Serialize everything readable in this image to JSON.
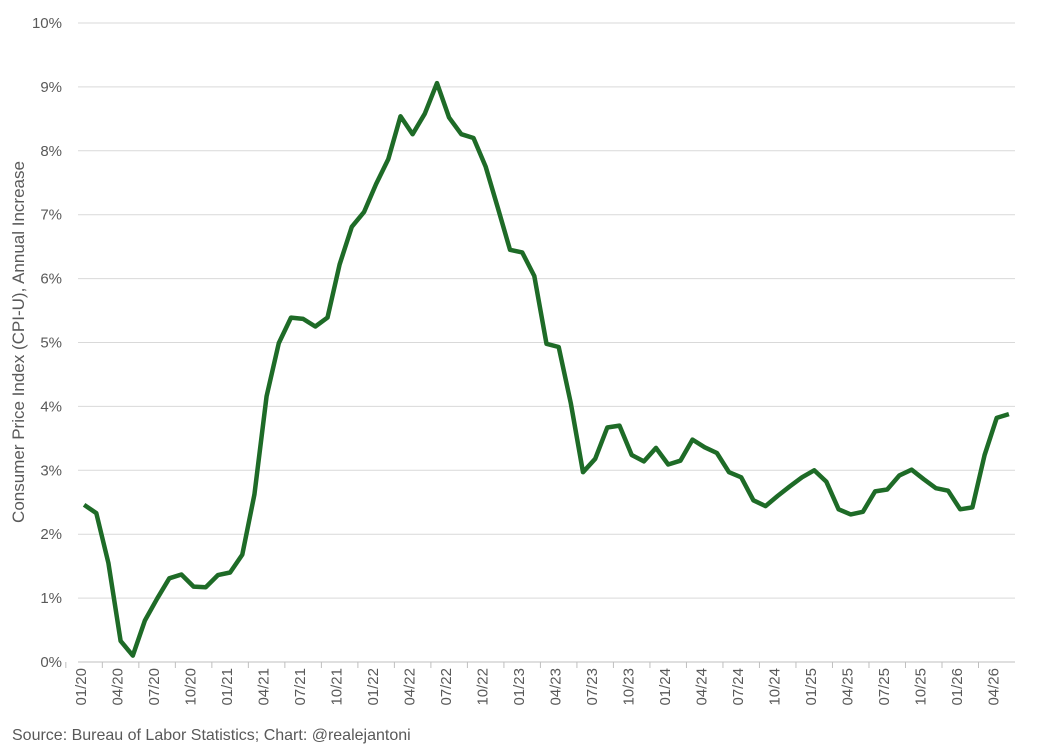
{
  "chart_data": {
    "type": "line",
    "y_label": "Consumer Price Index (CPI-U), Annual Increase",
    "source": "Source: Bureau of Labor Statistics; Chart: @realejantoni",
    "categories": [
      "01/20",
      null,
      null,
      "04/20",
      null,
      null,
      "07/20",
      null,
      null,
      "10/20",
      null,
      null,
      "01/21",
      null,
      null,
      "04/21",
      null,
      null,
      "07/21",
      null,
      null,
      "10/21",
      null,
      null,
      "01/22",
      null,
      null,
      "04/22",
      null,
      null,
      "07/22",
      null,
      null,
      "10/22",
      null,
      null,
      "01/23",
      null,
      null,
      "04/23",
      null,
      null,
      "07/23",
      null,
      null,
      "10/23",
      null,
      null,
      "01/24",
      null,
      null,
      "04/24",
      null,
      null,
      "07/24",
      null,
      null,
      "10/24",
      null,
      null,
      "01/25",
      null,
      null,
      "04/25",
      null,
      null,
      "07/25",
      null,
      null,
      "10/25",
      null,
      null,
      "01/26",
      null,
      null,
      "04/26",
      null
    ],
    "series": [
      {
        "color": "#1e6b27",
        "values": [
          2.46,
          2.33,
          1.55,
          0.33,
          0.1,
          0.65,
          0.99,
          1.31,
          1.37,
          1.18,
          1.17,
          1.36,
          1.4,
          1.68,
          2.62,
          4.16,
          4.99,
          5.39,
          5.37,
          5.25,
          5.39,
          6.22,
          6.81,
          7.04,
          7.48,
          7.87,
          8.54,
          8.26,
          8.58,
          9.06,
          8.52,
          8.26,
          8.2,
          7.75,
          7.11,
          6.45,
          6.41,
          6.04,
          4.98,
          4.93,
          4.05,
          2.97,
          3.18,
          3.67,
          3.7,
          3.24,
          3.14,
          3.35,
          3.09,
          3.15,
          3.48,
          3.36,
          3.27,
          2.97,
          2.89,
          2.53,
          2.44,
          2.6,
          2.75,
          2.89,
          3.0,
          2.82,
          2.39,
          2.31,
          2.35,
          2.67,
          2.7,
          2.92,
          3.01,
          2.86,
          2.72,
          2.68,
          2.39,
          2.42,
          3.24,
          3.82,
          3.88
        ]
      }
    ],
    "ylim": [
      0,
      10
    ],
    "yticks": [
      {
        "value": 0,
        "label": "0%"
      },
      {
        "value": 1,
        "label": "1%"
      },
      {
        "value": 2,
        "label": "2%"
      },
      {
        "value": 3,
        "label": "3%"
      },
      {
        "value": 4,
        "label": "4%"
      },
      {
        "value": 5,
        "label": "5%"
      },
      {
        "value": 6,
        "label": "6%"
      },
      {
        "value": 7,
        "label": "7%"
      },
      {
        "value": 8,
        "label": "8%"
      },
      {
        "value": 9,
        "label": "9%"
      },
      {
        "value": 10,
        "label": "10%"
      }
    ],
    "grid": true
  }
}
